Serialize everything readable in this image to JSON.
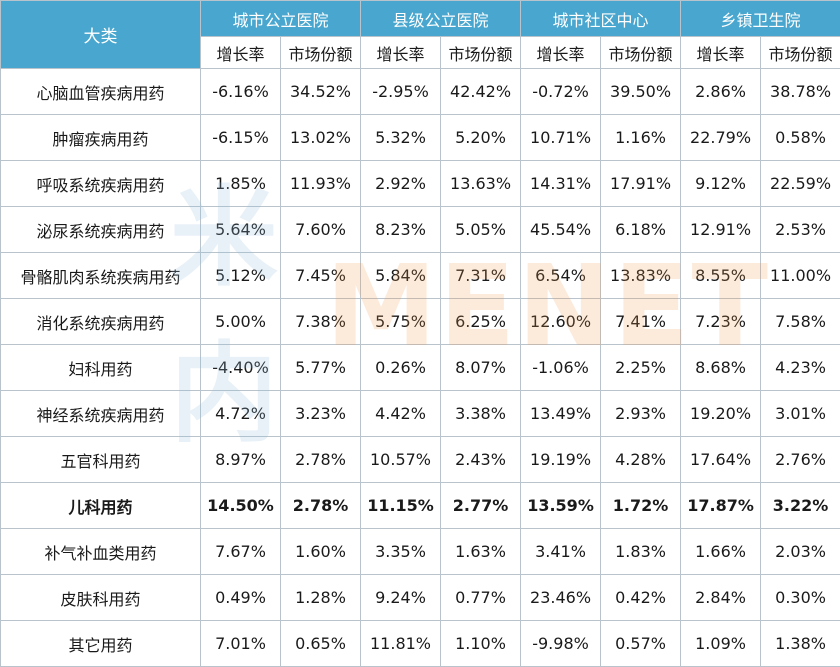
{
  "header": {
    "corner": "大类",
    "groups": [
      "城市公立医院",
      "县级公立医院",
      "城市社区中心",
      "乡镇卫生院"
    ],
    "sub": [
      "增长率",
      "市场份额"
    ]
  },
  "rows": [
    {
      "name": "心脑血管疾病用药",
      "v": [
        "-6.16%",
        "34.52%",
        "-2.95%",
        "42.42%",
        "-0.72%",
        "39.50%",
        "2.86%",
        "38.78%"
      ]
    },
    {
      "name": "肿瘤疾病用药",
      "v": [
        "-6.15%",
        "13.02%",
        "5.32%",
        "5.20%",
        "10.71%",
        "1.16%",
        "22.79%",
        "0.58%"
      ]
    },
    {
      "name": "呼吸系统疾病用药",
      "v": [
        "1.85%",
        "11.93%",
        "2.92%",
        "13.63%",
        "14.31%",
        "17.91%",
        "9.12%",
        "22.59%"
      ]
    },
    {
      "name": "泌尿系统疾病用药",
      "v": [
        "5.64%",
        "7.60%",
        "8.23%",
        "5.05%",
        "45.54%",
        "6.18%",
        "12.91%",
        "2.53%"
      ]
    },
    {
      "name": "骨骼肌肉系统疾病用药",
      "v": [
        "5.12%",
        "7.45%",
        "5.84%",
        "7.31%",
        "6.54%",
        "13.83%",
        "8.55%",
        "11.00%"
      ]
    },
    {
      "name": "消化系统疾病用药",
      "v": [
        "5.00%",
        "7.38%",
        "5.75%",
        "6.25%",
        "12.60%",
        "7.41%",
        "7.23%",
        "7.58%"
      ]
    },
    {
      "name": "妇科用药",
      "v": [
        "-4.40%",
        "5.77%",
        "0.26%",
        "8.07%",
        "-1.06%",
        "2.25%",
        "8.68%",
        "4.23%"
      ]
    },
    {
      "name": "神经系统疾病用药",
      "v": [
        "4.72%",
        "3.23%",
        "4.42%",
        "3.38%",
        "13.49%",
        "2.93%",
        "19.20%",
        "3.01%"
      ]
    },
    {
      "name": "五官科用药",
      "v": [
        "8.97%",
        "2.78%",
        "10.57%",
        "2.43%",
        "19.19%",
        "4.28%",
        "17.64%",
        "2.76%"
      ]
    },
    {
      "name": "儿科用药",
      "v": [
        "14.50%",
        "2.78%",
        "11.15%",
        "2.77%",
        "13.59%",
        "1.72%",
        "17.87%",
        "3.22%"
      ]
    },
    {
      "name": "补气补血类用药",
      "v": [
        "7.67%",
        "1.60%",
        "3.35%",
        "1.63%",
        "3.41%",
        "1.83%",
        "1.66%",
        "2.03%"
      ]
    },
    {
      "name": "皮肤科用药",
      "v": [
        "0.49%",
        "1.28%",
        "9.24%",
        "0.77%",
        "23.46%",
        "0.42%",
        "2.84%",
        "0.30%"
      ]
    },
    {
      "name": "其它用药",
      "v": [
        "7.01%",
        "0.65%",
        "11.81%",
        "1.10%",
        "-9.98%",
        "0.57%",
        "1.09%",
        "1.38%"
      ]
    }
  ],
  "highlight_row": "儿科用药",
  "watermark": {
    "mark": "米内",
    "text": "MENET"
  },
  "colors": {
    "header_bg": "#48a6cf",
    "header_text": "#ffffff",
    "border": "#b9c3cc"
  }
}
